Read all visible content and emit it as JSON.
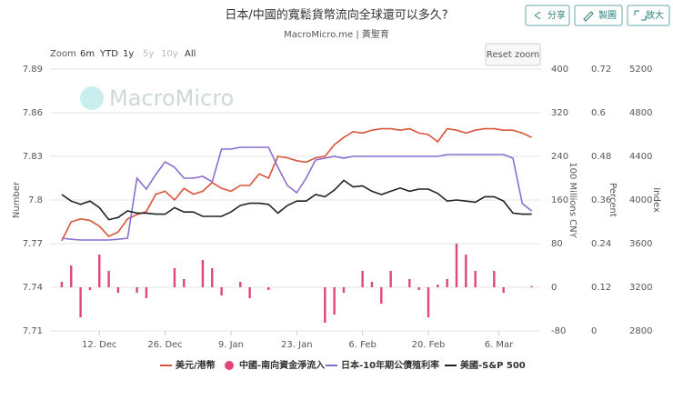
{
  "chart_data": {
    "type": "line",
    "title": "日本/中國的寬鬆貨幣流向全球還可以多久?",
    "subtitle": "MacroMicro.me | 黃聖育",
    "watermark": "MacroMicro",
    "toolbar": [
      "分享",
      "製圖",
      "放大"
    ],
    "zoom_label": "Zoom",
    "zoom_buttons": [
      "6m",
      "YTD",
      "1y",
      "5y",
      "10y",
      "All"
    ],
    "reset_zoom": "Reset zoom",
    "ylabel": "Number",
    "y2label": "100 Millions CNY",
    "y3label": "Percent",
    "y4label": "Index",
    "xlim": [
      1.5,
      106
    ],
    "xticks": [
      {
        "value": 12,
        "label": "12. Dec"
      },
      {
        "value": 26,
        "label": "26. Dec"
      },
      {
        "value": 40,
        "label": "9. Jan"
      },
      {
        "value": 54,
        "label": "23. Jan"
      },
      {
        "value": 68,
        "label": "6. Feb"
      },
      {
        "value": 82,
        "label": "20. Feb"
      },
      {
        "value": 97,
        "label": "6. Mar"
      }
    ],
    "ylim": [
      7.71,
      7.89
    ],
    "yticks": [
      7.71,
      7.74,
      7.77,
      7.8,
      7.83,
      7.86,
      7.89
    ],
    "y2lim": [
      -80,
      400
    ],
    "y2ticks": [
      -80,
      0,
      80,
      160,
      240,
      320,
      400
    ],
    "y3lim": [
      0,
      0.72
    ],
    "y3ticks": [
      0,
      0.12,
      0.24,
      0.36,
      0.48,
      0.6,
      0.72
    ],
    "y4lim": [
      2800,
      5200
    ],
    "y4ticks": [
      2800,
      3200,
      3600,
      4000,
      4400,
      4800,
      5200
    ],
    "grid": true,
    "x": [
      4,
      6,
      8,
      10,
      12,
      14,
      16,
      18,
      20,
      22,
      24,
      26,
      28,
      30,
      32,
      34,
      36,
      38,
      40,
      42,
      44,
      46,
      48,
      50,
      52,
      54,
      56,
      58,
      60,
      62,
      64,
      66,
      68,
      70,
      72,
      74,
      76,
      78,
      80,
      82,
      84,
      86,
      88,
      90,
      92,
      94,
      96,
      98,
      100,
      102,
      104
    ],
    "series": [
      {
        "name": "美元/港幣",
        "type": "line",
        "axis": "y",
        "color": "#d9553a",
        "values": [
          7.772,
          7.785,
          7.787,
          7.786,
          7.782,
          7.775,
          7.778,
          7.787,
          7.79,
          7.792,
          7.804,
          7.806,
          7.8,
          7.808,
          7.804,
          7.806,
          7.812,
          7.808,
          7.806,
          7.81,
          7.81,
          7.818,
          7.815,
          7.83,
          7.829,
          7.827,
          7.826,
          7.829,
          7.83,
          7.838,
          7.843,
          7.847,
          7.846,
          7.848,
          7.849,
          7.849,
          7.848,
          7.849,
          7.846,
          7.845,
          7.84,
          7.849,
          7.848,
          7.846,
          7.848,
          7.849,
          7.849,
          7.848,
          7.848,
          7.846,
          7.843
        ]
      },
      {
        "name": "中國-南向資金淨流入",
        "type": "bar",
        "axis": "y2",
        "color": "#e0457b",
        "values": [
          10,
          40,
          -55,
          -5,
          60,
          30,
          -10,
          0,
          -10,
          -20,
          0,
          0,
          35,
          15,
          0,
          50,
          35,
          -15,
          0,
          10,
          -20,
          0,
          -5,
          0,
          0,
          0,
          0,
          0,
          -65,
          -50,
          -10,
          0,
          30,
          10,
          -30,
          30,
          0,
          15,
          -5,
          -55,
          5,
          15,
          80,
          60,
          30,
          0,
          30,
          -10,
          0,
          0,
          2
        ]
      },
      {
        "name": "日本-10年期公債殖利率",
        "type": "line",
        "axis": "y3",
        "color": "#8a6fcf",
        "values": [
          0.255,
          0.252,
          0.25,
          0.25,
          0.25,
          0.25,
          0.252,
          0.255,
          0.42,
          0.39,
          0.43,
          0.465,
          0.45,
          0.42,
          0.42,
          0.425,
          0.41,
          0.5,
          0.5,
          0.505,
          0.505,
          0.505,
          0.505,
          0.45,
          0.4,
          0.38,
          0.42,
          0.47,
          0.475,
          0.48,
          0.475,
          0.48,
          0.48,
          0.48,
          0.48,
          0.48,
          0.48,
          0.48,
          0.48,
          0.48,
          0.48,
          0.485,
          0.485,
          0.485,
          0.485,
          0.485,
          0.485,
          0.485,
          0.475,
          0.35,
          0.33
        ]
      },
      {
        "name": "美國-S&P 500",
        "type": "line",
        "axis": "y4",
        "color": "#222222",
        "values": [
          4050,
          3990,
          3960,
          3990,
          3930,
          3820,
          3840,
          3900,
          3880,
          3880,
          3870,
          3870,
          3930,
          3890,
          3890,
          3850,
          3850,
          3850,
          3890,
          3950,
          3970,
          3970,
          3960,
          3880,
          3950,
          3990,
          3990,
          4050,
          4030,
          4090,
          4180,
          4120,
          4130,
          4080,
          4050,
          4080,
          4110,
          4080,
          4100,
          4100,
          4060,
          3990,
          4000,
          3990,
          3980,
          4030,
          4030,
          3990,
          3880,
          3870,
          3870
        ]
      }
    ]
  }
}
